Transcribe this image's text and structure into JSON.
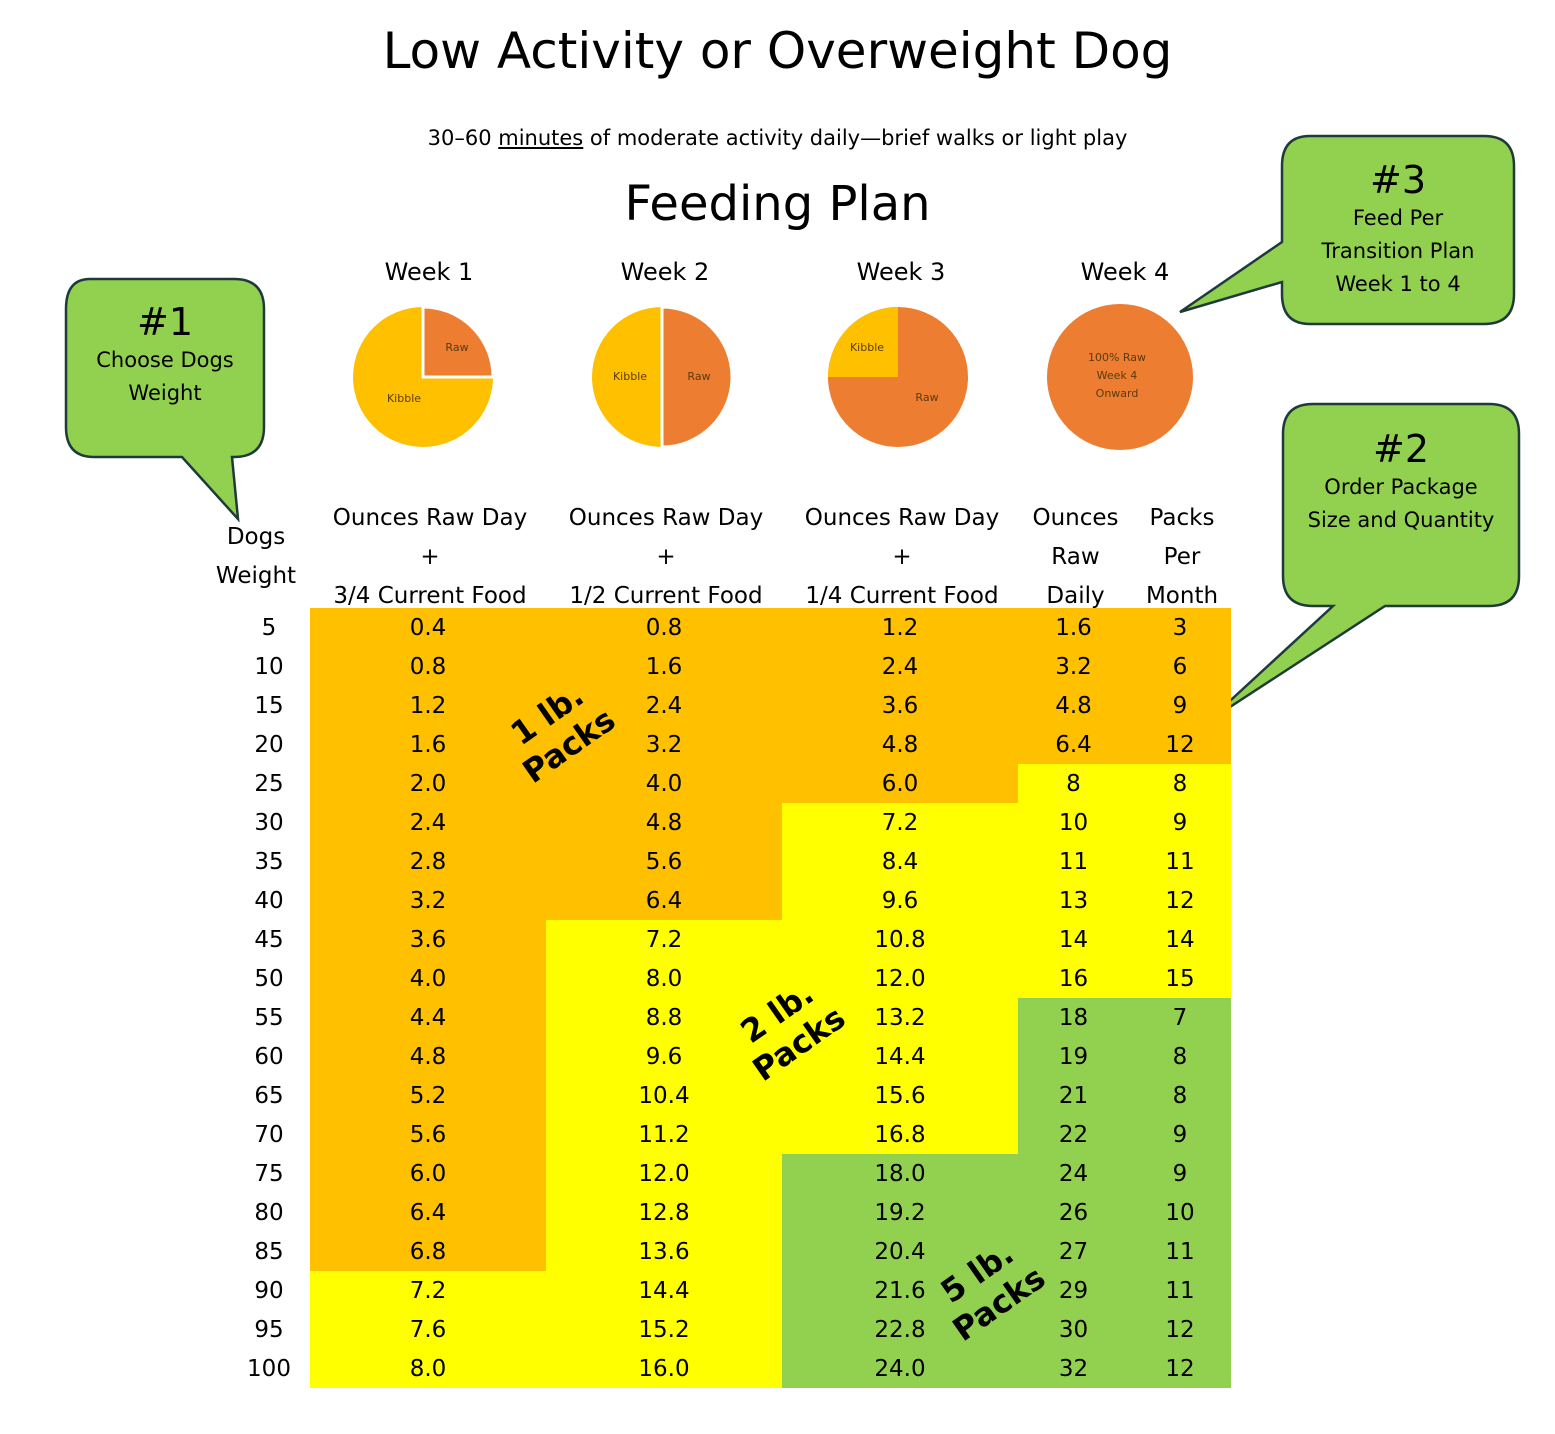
{
  "title": "Low Activity or Overweight Dog",
  "subtitle": {
    "before": "30–60 ",
    "underlined": "minutes",
    "after": " of moderate activity daily—brief walks or light play"
  },
  "plan_title": "Feeding Plan",
  "colors": {
    "raw": "#ed7d31",
    "kibble": "#ffc000",
    "one_lb": "#ffc000",
    "two_lb": "#ffff00",
    "five_lb": "#92d050",
    "callout": "#92d050"
  },
  "chart_data": [
    {
      "type": "pie",
      "title": "Week 1",
      "slices": [
        {
          "label": "Raw",
          "value": 25
        },
        {
          "label": "Kibble",
          "value": 75
        }
      ]
    },
    {
      "type": "pie",
      "title": "Week 2",
      "slices": [
        {
          "label": "Raw",
          "value": 50
        },
        {
          "label": "Kibble",
          "value": 50
        }
      ]
    },
    {
      "type": "pie",
      "title": "Week 3",
      "slices": [
        {
          "label": "Raw",
          "value": 75
        },
        {
          "label": "Kibble",
          "value": 25
        }
      ]
    },
    {
      "type": "pie",
      "title": "Week 4",
      "slices": [
        {
          "label": "100% Raw Week 4 Onward",
          "value": 100
        }
      ]
    }
  ],
  "weeks": [
    {
      "label": "Week 1",
      "raw_label": "Raw",
      "kibble_label": "Kibble"
    },
    {
      "label": "Week 2",
      "raw_label": "Raw",
      "kibble_label": "Kibble"
    },
    {
      "label": "Week 3",
      "raw_label": "Raw",
      "kibble_label": "Kibble"
    },
    {
      "label": "Week 4",
      "lines": [
        "100% Raw",
        "Week 4",
        "Onward"
      ]
    }
  ],
  "callouts": [
    {
      "num": "#1",
      "lines": [
        "Choose Dogs",
        "Weight"
      ]
    },
    {
      "num": "#2",
      "lines": [
        "Order Package",
        "Size and Quantity"
      ]
    },
    {
      "num": "#3",
      "lines": [
        "Feed Per",
        "Transition Plan",
        "Week 1 to 4"
      ]
    }
  ],
  "table": {
    "headers": [
      [
        "Dogs",
        "Weight"
      ],
      [
        "Ounces Raw Day",
        "+",
        "3/4 Current Food"
      ],
      [
        "Ounces Raw Day",
        "+",
        "1/2 Current Food"
      ],
      [
        "Ounces Raw Day",
        "+",
        "1/4 Current Food"
      ],
      [
        "Ounces",
        "Raw",
        "Daily"
      ],
      [
        "Packs",
        "Per",
        "Month"
      ]
    ],
    "rows": [
      [
        "5",
        "0.4",
        "0.8",
        "1.2",
        "1.6",
        "3"
      ],
      [
        "10",
        "0.8",
        "1.6",
        "2.4",
        "3.2",
        "6"
      ],
      [
        "15",
        "1.2",
        "2.4",
        "3.6",
        "4.8",
        "9"
      ],
      [
        "20",
        "1.6",
        "3.2",
        "4.8",
        "6.4",
        "12"
      ],
      [
        "25",
        "2.0",
        "4.0",
        "6.0",
        "8",
        "8"
      ],
      [
        "30",
        "2.4",
        "4.8",
        "7.2",
        "10",
        "9"
      ],
      [
        "35",
        "2.8",
        "5.6",
        "8.4",
        "11",
        "11"
      ],
      [
        "40",
        "3.2",
        "6.4",
        "9.6",
        "13",
        "12"
      ],
      [
        "45",
        "3.6",
        "7.2",
        "10.8",
        "14",
        "14"
      ],
      [
        "50",
        "4.0",
        "8.0",
        "12.0",
        "16",
        "15"
      ],
      [
        "55",
        "4.4",
        "8.8",
        "13.2",
        "18",
        "7"
      ],
      [
        "60",
        "4.8",
        "9.6",
        "14.4",
        "19",
        "8"
      ],
      [
        "65",
        "5.2",
        "10.4",
        "15.6",
        "21",
        "8"
      ],
      [
        "70",
        "5.6",
        "11.2",
        "16.8",
        "22",
        "9"
      ],
      [
        "75",
        "6.0",
        "12.0",
        "18.0",
        "24",
        "9"
      ],
      [
        "80",
        "6.4",
        "12.8",
        "19.2",
        "26",
        "10"
      ],
      [
        "85",
        "6.8",
        "13.6",
        "20.4",
        "27",
        "11"
      ],
      [
        "90",
        "7.2",
        "14.4",
        "21.6",
        "29",
        "11"
      ],
      [
        "95",
        "7.6",
        "15.2",
        "22.8",
        "30",
        "12"
      ],
      [
        "100",
        "8.0",
        "16.0",
        "24.0",
        "32",
        "12"
      ]
    ],
    "pack_zones": [
      {
        "label_lines": [
          "1 lb.",
          "Packs"
        ],
        "color": "#ffc000"
      },
      {
        "label_lines": [
          "2  lb.",
          "Packs"
        ],
        "color": "#ffff00"
      },
      {
        "label_lines": [
          "5 lb.",
          "Packs"
        ],
        "color": "#92d050"
      }
    ]
  }
}
